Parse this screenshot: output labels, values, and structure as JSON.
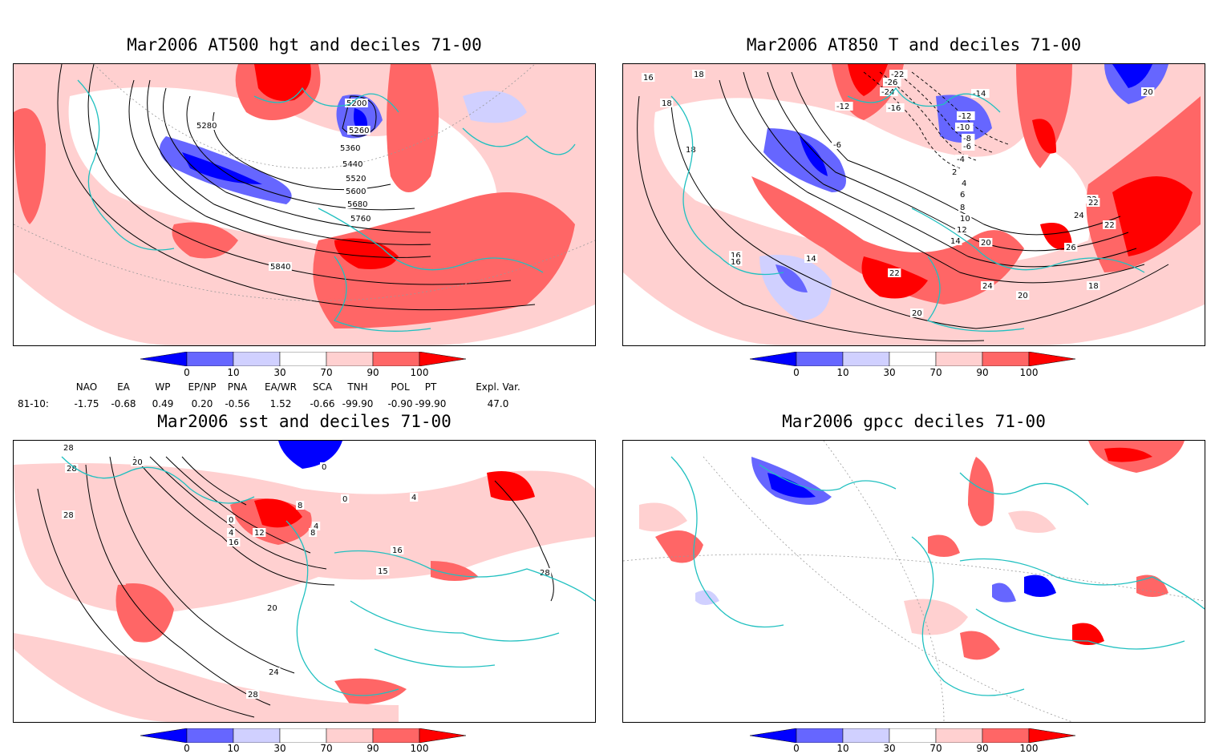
{
  "panels": [
    {
      "title": "Mar2006 AT500 hgt and deciles 71-00",
      "contour_labels": [
        "5200",
        "5280",
        "5260",
        "5360",
        "5440",
        "5520",
        "5600",
        "5680",
        "5760",
        "5840"
      ]
    },
    {
      "title": "Mar2006 AT850 T and deciles 71-00",
      "contour_labels": [
        "16",
        "18",
        "18",
        "18",
        "-22",
        "-26",
        "-24",
        "-12",
        "-16",
        "-14",
        "-12",
        "-10",
        "-8",
        "-6",
        "-6",
        "-4",
        "2",
        "4",
        "6",
        "8",
        "10",
        "12",
        "14",
        "16",
        "16",
        "14",
        "20",
        "20",
        "22",
        "22",
        "24",
        "24",
        "26",
        "22",
        "20",
        "22",
        "20",
        "18"
      ]
    },
    {
      "title": "Mar2006 sst and deciles 71-00",
      "contour_labels": [
        "28",
        "28",
        "28",
        "20",
        "0",
        "4",
        "12",
        "16",
        "8",
        "0",
        "4",
        "8",
        "0",
        "16",
        "15",
        "4",
        "28",
        "20",
        "24",
        "28"
      ]
    },
    {
      "title": "Mar2006 gpcc deciles 71-00",
      "contour_labels": []
    }
  ],
  "colorbar": {
    "labels": [
      "0",
      "10",
      "30",
      "70",
      "90",
      "100"
    ],
    "colors": [
      "#0000ff",
      "#6666ff",
      "#d0d0ff",
      "#ffffff",
      "#ffd0d0",
      "#ff6666",
      "#ff0000"
    ]
  },
  "indices": {
    "headers": [
      "NAO",
      "EA",
      "WP",
      "EP/NP",
      "PNA",
      "EA/WR",
      "SCA",
      "TNH",
      "POL",
      "PT",
      "Expl. Var."
    ],
    "row_label": "81-10:",
    "values": [
      "-1.75",
      "-0.68",
      "0.49",
      "0.20",
      "-0.56",
      "1.52",
      "-0.66",
      "-99.90",
      "-0.90",
      "-99.90",
      "47.0"
    ]
  }
}
